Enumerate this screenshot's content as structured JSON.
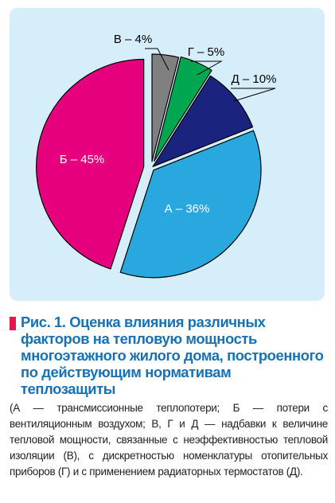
{
  "chart_data": {
    "type": "pie",
    "slices": [
      {
        "label": "А – 36%",
        "value": 36,
        "color": "#29a8e0",
        "text_color": "#ffffff"
      },
      {
        "label": "Б – 45%",
        "value": 45,
        "color": "#e6007e",
        "text_color": "#ffffff"
      },
      {
        "label": "В – 4%",
        "value": 4,
        "color": "#808080",
        "text_color": "#000000"
      },
      {
        "label": "Г – 5%",
        "value": 5,
        "color": "#00a650",
        "text_color": "#000000"
      },
      {
        "label": "Д – 10%",
        "value": 10,
        "color": "#1a237e",
        "text_color": "#000000"
      }
    ],
    "panel_color": "#d6eefa"
  },
  "caption": {
    "title": "Рис. 1. Оценка влияния различных факторов на тепловую мощность многоэтажного жилого дома, построенного по действующим нормативам теплозащиты",
    "note": "(А — трансмиссионные теплопотери; Б — потери с вентиляционным воздухом; В, Г и Д — надбавки к величине тепловой мощности, связанные с неэффективностью тепловой изоляции (В), с дискретностью номенклатуры отопительных приборов (Г) и с применением радиаторных термостатов (Д).",
    "marker_color": "#e4174f",
    "title_color": "#1672b4"
  }
}
